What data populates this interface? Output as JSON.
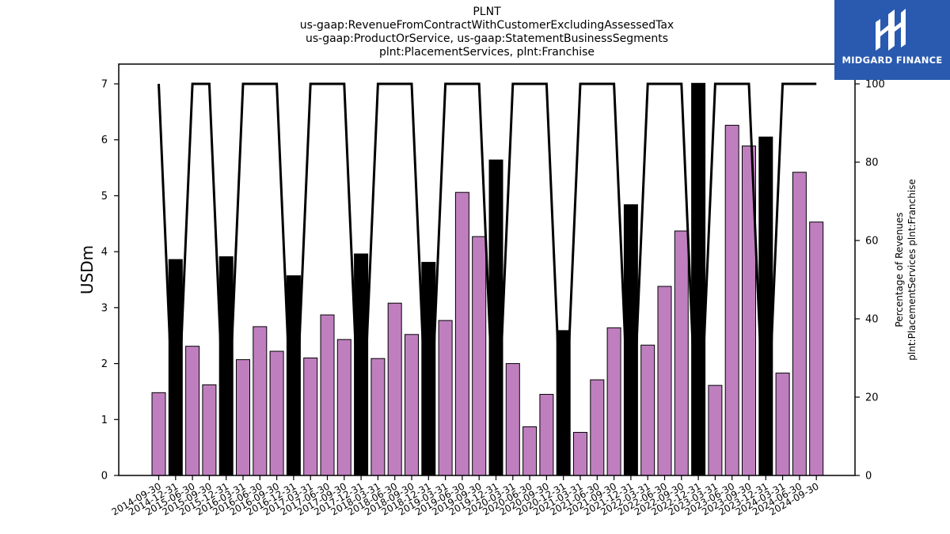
{
  "chart_data": {
    "type": "bar+line",
    "title_lines": [
      "PLNT",
      "us-gaap:RevenueFromContractWithCustomerExcludingAssessedTax",
      "us-gaap:ProductOrService, us-gaap:StatementBusinessSegments",
      "plnt:PlacementServices, plnt:Franchise"
    ],
    "ylabel": "USDm",
    "ylabel_right_lines": [
      "Percentage of Revenues",
      "plnt:PlacementServices plnt:Franchise"
    ],
    "ylim": [
      0,
      7
    ],
    "y2lim": [
      0,
      100
    ],
    "yticks": [
      0,
      1,
      2,
      3,
      4,
      5,
      6,
      7
    ],
    "y2ticks": [
      0,
      20,
      40,
      60,
      80,
      100
    ],
    "categories": [
      "2014-09-30",
      "2014-12-31",
      "2015-06-30",
      "2015-09-30",
      "2015-12-31",
      "2016-03-31",
      "2016-06-30",
      "2016-09-30",
      "2016-12-31",
      "2017-03-31",
      "2017-06-30",
      "2017-09-30",
      "2017-12-31",
      "2018-03-31",
      "2018-06-30",
      "2018-09-30",
      "2018-12-31",
      "2019-03-31",
      "2019-06-30",
      "2019-09-30",
      "2019-12-31",
      "2020-03-31",
      "2020-06-30",
      "2020-09-30",
      "2020-12-31",
      "2021-03-31",
      "2021-06-30",
      "2021-09-30",
      "2021-12-31",
      "2022-03-31",
      "2022-06-30",
      "2022-09-30",
      "2022-12-31",
      "2023-03-31",
      "2023-06-30",
      "2023-09-30",
      "2023-12-31",
      "2024-03-31",
      "2024-06-30",
      "2024-09-30"
    ],
    "values": [
      1.48,
      3.86,
      2.31,
      1.62,
      3.91,
      2.07,
      2.66,
      2.22,
      3.57,
      2.1,
      2.87,
      2.43,
      3.96,
      2.09,
      3.08,
      2.52,
      3.81,
      2.77,
      5.06,
      4.27,
      5.64,
      2.0,
      0.87,
      1.45,
      2.59,
      0.77,
      1.71,
      2.64,
      4.84,
      2.33,
      3.38,
      4.37,
      7.01,
      1.61,
      6.26,
      5.89,
      6.05,
      1.83,
      5.42,
      4.53
    ],
    "bar_colors": [
      "#bf7fbf",
      "#000000",
      "#bf7fbf",
      "#bf7fbf",
      "#000000",
      "#bf7fbf",
      "#bf7fbf",
      "#bf7fbf",
      "#000000",
      "#bf7fbf",
      "#bf7fbf",
      "#bf7fbf",
      "#000000",
      "#bf7fbf",
      "#bf7fbf",
      "#bf7fbf",
      "#000000",
      "#bf7fbf",
      "#bf7fbf",
      "#bf7fbf",
      "#000000",
      "#bf7fbf",
      "#bf7fbf",
      "#bf7fbf",
      "#000000",
      "#bf7fbf",
      "#bf7fbf",
      "#bf7fbf",
      "#000000",
      "#bf7fbf",
      "#bf7fbf",
      "#bf7fbf",
      "#000000",
      "#bf7fbf",
      "#bf7fbf",
      "#bf7fbf",
      "#000000",
      "#bf7fbf",
      "#bf7fbf",
      "#bf7fbf"
    ],
    "line_values": [
      100,
      0,
      100,
      100,
      0,
      100,
      100,
      100,
      0,
      100,
      100,
      100,
      0,
      100,
      100,
      100,
      0,
      100,
      100,
      100,
      0,
      100,
      100,
      100,
      0,
      100,
      100,
      100,
      0,
      100,
      100,
      100,
      0,
      100,
      100,
      100,
      0,
      100,
      100,
      100
    ],
    "line_color": "#000000"
  },
  "logo": {
    "text": "MIDGARD FINANCE",
    "color": "#2a5ab0"
  }
}
